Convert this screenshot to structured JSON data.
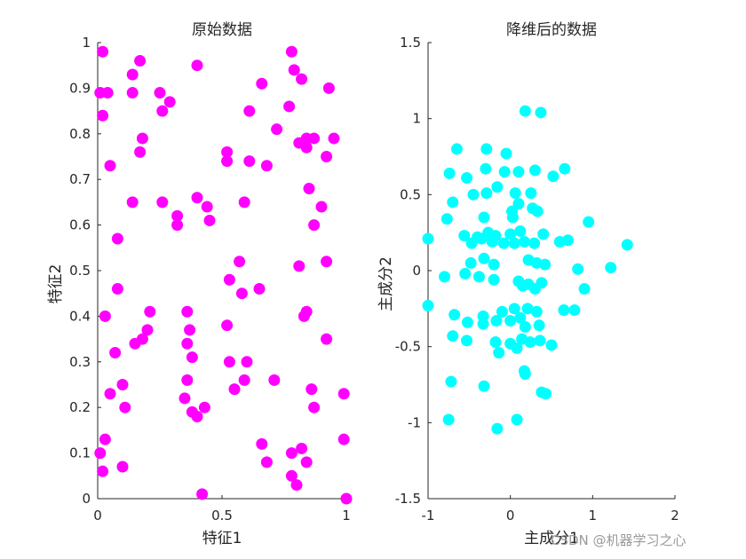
{
  "watermark": "CSDN @机器学习之心",
  "chart_data": [
    {
      "type": "scatter",
      "title": "原始数据",
      "xlabel": "特征1",
      "ylabel": "特征2",
      "xlim": [
        0,
        1
      ],
      "ylim": [
        0,
        1
      ],
      "xticks": [
        0,
        0.5,
        1
      ],
      "xtick_labels": [
        "0",
        "0.5",
        "1"
      ],
      "yticks": [
        0,
        0.1,
        0.2,
        0.3,
        0.4,
        0.5,
        0.6,
        0.7,
        0.8,
        0.9,
        1
      ],
      "ytick_labels": [
        "0",
        "0.1",
        "0.2",
        "0.3",
        "0.4",
        "0.5",
        "0.6",
        "0.7",
        "0.8",
        "0.9",
        "1"
      ],
      "color": "#ff00ff",
      "grid": false,
      "points": [
        [
          0.02,
          0.98
        ],
        [
          0.01,
          0.89
        ],
        [
          0.04,
          0.89
        ],
        [
          0.02,
          0.84
        ],
        [
          0.05,
          0.73
        ],
        [
          0.08,
          0.57
        ],
        [
          0.08,
          0.46
        ],
        [
          0.03,
          0.4
        ],
        [
          0.07,
          0.32
        ],
        [
          0.03,
          0.13
        ],
        [
          0.05,
          0.23
        ],
        [
          0.01,
          0.1
        ],
        [
          0.02,
          0.06
        ],
        [
          0.1,
          0.07
        ],
        [
          0.11,
          0.2
        ],
        [
          0.1,
          0.25
        ],
        [
          0.14,
          0.93
        ],
        [
          0.17,
          0.96
        ],
        [
          0.14,
          0.89
        ],
        [
          0.18,
          0.79
        ],
        [
          0.17,
          0.76
        ],
        [
          0.14,
          0.65
        ],
        [
          0.15,
          0.34
        ],
        [
          0.18,
          0.35
        ],
        [
          0.2,
          0.37
        ],
        [
          0.21,
          0.41
        ],
        [
          0.25,
          0.89
        ],
        [
          0.26,
          0.85
        ],
        [
          0.29,
          0.87
        ],
        [
          0.26,
          0.65
        ],
        [
          0.32,
          0.62
        ],
        [
          0.32,
          0.6
        ],
        [
          0.4,
          0.95
        ],
        [
          0.4,
          0.66
        ],
        [
          0.44,
          0.64
        ],
        [
          0.45,
          0.61
        ],
        [
          0.36,
          0.41
        ],
        [
          0.37,
          0.37
        ],
        [
          0.36,
          0.34
        ],
        [
          0.38,
          0.31
        ],
        [
          0.36,
          0.26
        ],
        [
          0.35,
          0.22
        ],
        [
          0.38,
          0.19
        ],
        [
          0.4,
          0.18
        ],
        [
          0.43,
          0.2
        ],
        [
          0.42,
          0.01
        ],
        [
          0.52,
          0.76
        ],
        [
          0.52,
          0.74
        ],
        [
          0.53,
          0.48
        ],
        [
          0.52,
          0.38
        ],
        [
          0.53,
          0.3
        ],
        [
          0.55,
          0.24
        ],
        [
          0.57,
          0.52
        ],
        [
          0.58,
          0.45
        ],
        [
          0.59,
          0.26
        ],
        [
          0.6,
          0.3
        ],
        [
          0.59,
          0.65
        ],
        [
          0.61,
          0.74
        ],
        [
          0.61,
          0.85
        ],
        [
          0.65,
          0.46
        ],
        [
          0.66,
          0.91
        ],
        [
          0.68,
          0.73
        ],
        [
          0.66,
          0.12
        ],
        [
          0.68,
          0.08
        ],
        [
          0.71,
          0.26
        ],
        [
          0.72,
          0.81
        ],
        [
          0.77,
          0.86
        ],
        [
          0.78,
          0.98
        ],
        [
          0.79,
          0.94
        ],
        [
          0.82,
          0.92
        ],
        [
          0.81,
          0.78
        ],
        [
          0.84,
          0.79
        ],
        [
          0.84,
          0.77
        ],
        [
          0.87,
          0.79
        ],
        [
          0.85,
          0.68
        ],
        [
          0.81,
          0.51
        ],
        [
          0.84,
          0.41
        ],
        [
          0.83,
          0.4
        ],
        [
          0.78,
          0.1
        ],
        [
          0.82,
          0.11
        ],
        [
          0.78,
          0.05
        ],
        [
          0.8,
          0.03
        ],
        [
          0.84,
          0.08
        ],
        [
          0.86,
          0.24
        ],
        [
          0.87,
          0.2
        ],
        [
          0.87,
          0.6
        ],
        [
          0.9,
          0.64
        ],
        [
          0.92,
          0.75
        ],
        [
          0.93,
          0.9
        ],
        [
          0.95,
          0.79
        ],
        [
          0.92,
          0.52
        ],
        [
          0.92,
          0.35
        ],
        [
          0.99,
          0.23
        ],
        [
          0.99,
          0.13
        ],
        [
          1.0,
          0.0
        ]
      ]
    },
    {
      "type": "scatter",
      "title": "降维后的数据",
      "xlabel": "主成分1",
      "ylabel": "主成分2",
      "xlim": [
        -1,
        2
      ],
      "ylim": [
        -1.5,
        1.5
      ],
      "xticks": [
        -1,
        0,
        1,
        2
      ],
      "xtick_labels": [
        "-1",
        "0",
        "1",
        "2"
      ],
      "yticks": [
        -1.5,
        -1,
        -0.5,
        0,
        0.5,
        1,
        1.5
      ],
      "ytick_labels": [
        "-1.5",
        "-1",
        "-0.5",
        "0",
        "0.5",
        "1",
        "1.5"
      ],
      "color": "#00ffff",
      "grid": false,
      "points": [
        [
          0.18,
          1.05
        ],
        [
          0.37,
          1.04
        ],
        [
          -0.65,
          0.8
        ],
        [
          -0.29,
          0.8
        ],
        [
          -0.05,
          0.77
        ],
        [
          -0.74,
          0.64
        ],
        [
          -0.53,
          0.61
        ],
        [
          -0.3,
          0.67
        ],
        [
          -0.07,
          0.65
        ],
        [
          0.1,
          0.65
        ],
        [
          0.3,
          0.66
        ],
        [
          0.52,
          0.62
        ],
        [
          0.66,
          0.67
        ],
        [
          -0.7,
          0.45
        ],
        [
          -0.29,
          0.51
        ],
        [
          -0.16,
          0.55
        ],
        [
          -0.45,
          0.5
        ],
        [
          0.06,
          0.51
        ],
        [
          0.25,
          0.51
        ],
        [
          0.1,
          0.44
        ],
        [
          0.02,
          0.39
        ],
        [
          0.27,
          0.41
        ],
        [
          -0.77,
          0.34
        ],
        [
          -0.32,
          0.35
        ],
        [
          0.03,
          0.35
        ],
        [
          0.33,
          0.39
        ],
        [
          0.95,
          0.32
        ],
        [
          -0.56,
          0.23
        ],
        [
          -0.4,
          0.22
        ],
        [
          -0.27,
          0.25
        ],
        [
          -0.18,
          0.23
        ],
        [
          0.0,
          0.24
        ],
        [
          0.12,
          0.26
        ],
        [
          0.4,
          0.24
        ],
        [
          -1.0,
          0.21
        ],
        [
          -0.47,
          0.18
        ],
        [
          -0.35,
          0.21
        ],
        [
          -0.22,
          0.19
        ],
        [
          -0.08,
          0.18
        ],
        [
          0.05,
          0.18
        ],
        [
          0.17,
          0.19
        ],
        [
          0.29,
          0.18
        ],
        [
          0.6,
          0.19
        ],
        [
          0.7,
          0.2
        ],
        [
          1.42,
          0.17
        ],
        [
          -0.48,
          0.05
        ],
        [
          -0.32,
          0.08
        ],
        [
          -0.2,
          0.04
        ],
        [
          0.22,
          0.07
        ],
        [
          0.32,
          0.05
        ],
        [
          0.42,
          0.04
        ],
        [
          0.82,
          0.01
        ],
        [
          1.22,
          0.02
        ],
        [
          -0.8,
          -0.04
        ],
        [
          -0.55,
          -0.02
        ],
        [
          -0.38,
          -0.04
        ],
        [
          -0.2,
          -0.06
        ],
        [
          0.1,
          -0.07
        ],
        [
          0.22,
          -0.09
        ],
        [
          0.15,
          -0.1
        ],
        [
          0.38,
          -0.08
        ],
        [
          0.3,
          -0.12
        ],
        [
          0.9,
          -0.12
        ],
        [
          -1.0,
          -0.23
        ],
        [
          -0.68,
          -0.29
        ],
        [
          -0.52,
          -0.34
        ],
        [
          -0.33,
          -0.3
        ],
        [
          -0.1,
          -0.27
        ],
        [
          0.05,
          -0.25
        ],
        [
          0.21,
          -0.25
        ],
        [
          0.12,
          -0.31
        ],
        [
          0.32,
          -0.27
        ],
        [
          0.65,
          -0.26
        ],
        [
          0.78,
          -0.26
        ],
        [
          -0.33,
          -0.35
        ],
        [
          -0.17,
          -0.33
        ],
        [
          0.0,
          -0.33
        ],
        [
          0.18,
          -0.37
        ],
        [
          0.35,
          -0.36
        ],
        [
          -0.7,
          -0.43
        ],
        [
          -0.53,
          -0.46
        ],
        [
          -0.18,
          -0.47
        ],
        [
          0.0,
          -0.48
        ],
        [
          0.14,
          -0.45
        ],
        [
          0.24,
          -0.47
        ],
        [
          0.36,
          -0.46
        ],
        [
          0.5,
          -0.49
        ],
        [
          -0.14,
          -0.54
        ],
        [
          0.08,
          -0.51
        ],
        [
          0.17,
          -0.66
        ],
        [
          0.18,
          -0.68
        ],
        [
          -0.72,
          -0.73
        ],
        [
          -0.32,
          -0.76
        ],
        [
          0.38,
          -0.8
        ],
        [
          0.43,
          -0.81
        ],
        [
          -0.75,
          -0.98
        ],
        [
          0.08,
          -0.98
        ],
        [
          -0.16,
          -1.04
        ]
      ]
    }
  ]
}
